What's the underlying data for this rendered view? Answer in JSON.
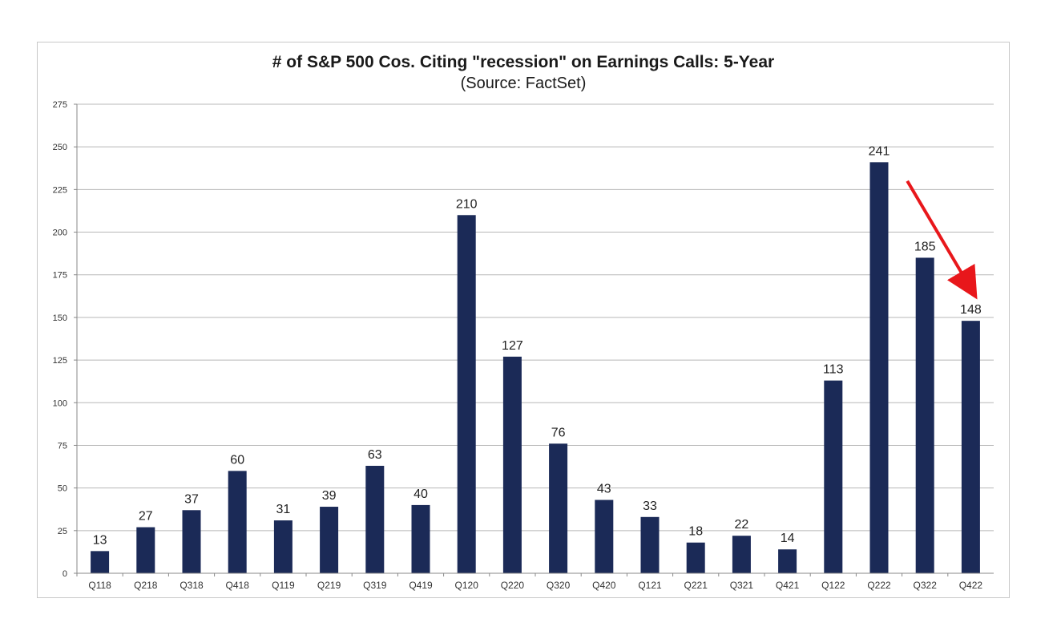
{
  "chart_data": {
    "type": "bar",
    "title": "# of S&P 500 Cos. Citing \"recession\" on Earnings Calls: 5-Year",
    "subtitle": "(Source: FactSet)",
    "xlabel": "",
    "ylabel": "",
    "categories": [
      "Q118",
      "Q218",
      "Q318",
      "Q418",
      "Q119",
      "Q219",
      "Q319",
      "Q419",
      "Q120",
      "Q220",
      "Q320",
      "Q420",
      "Q121",
      "Q221",
      "Q321",
      "Q421",
      "Q122",
      "Q222",
      "Q322",
      "Q422"
    ],
    "values": [
      13,
      27,
      37,
      60,
      31,
      39,
      63,
      40,
      210,
      127,
      76,
      43,
      33,
      18,
      22,
      14,
      113,
      241,
      185,
      148
    ],
    "data_labels": [
      "13",
      "27",
      "37",
      "60",
      "31",
      "39",
      "63",
      "40",
      "210",
      "127",
      "76",
      "43",
      "33",
      "18",
      "22",
      "14",
      "113",
      "241",
      "185",
      "148"
    ],
    "ylim": [
      0,
      275
    ],
    "yticks": [
      "0",
      "25",
      "50",
      "75",
      "100",
      "125",
      "150",
      "175",
      "200",
      "225",
      "250",
      "275"
    ],
    "grid": true,
    "legend": "none",
    "bar_color": "#1b2a57",
    "annotations": [
      {
        "type": "arrow",
        "color": "#e8171b",
        "from_category": "Q322",
        "from_value": 230,
        "to_category": "Q422",
        "to_value": 167
      }
    ]
  }
}
